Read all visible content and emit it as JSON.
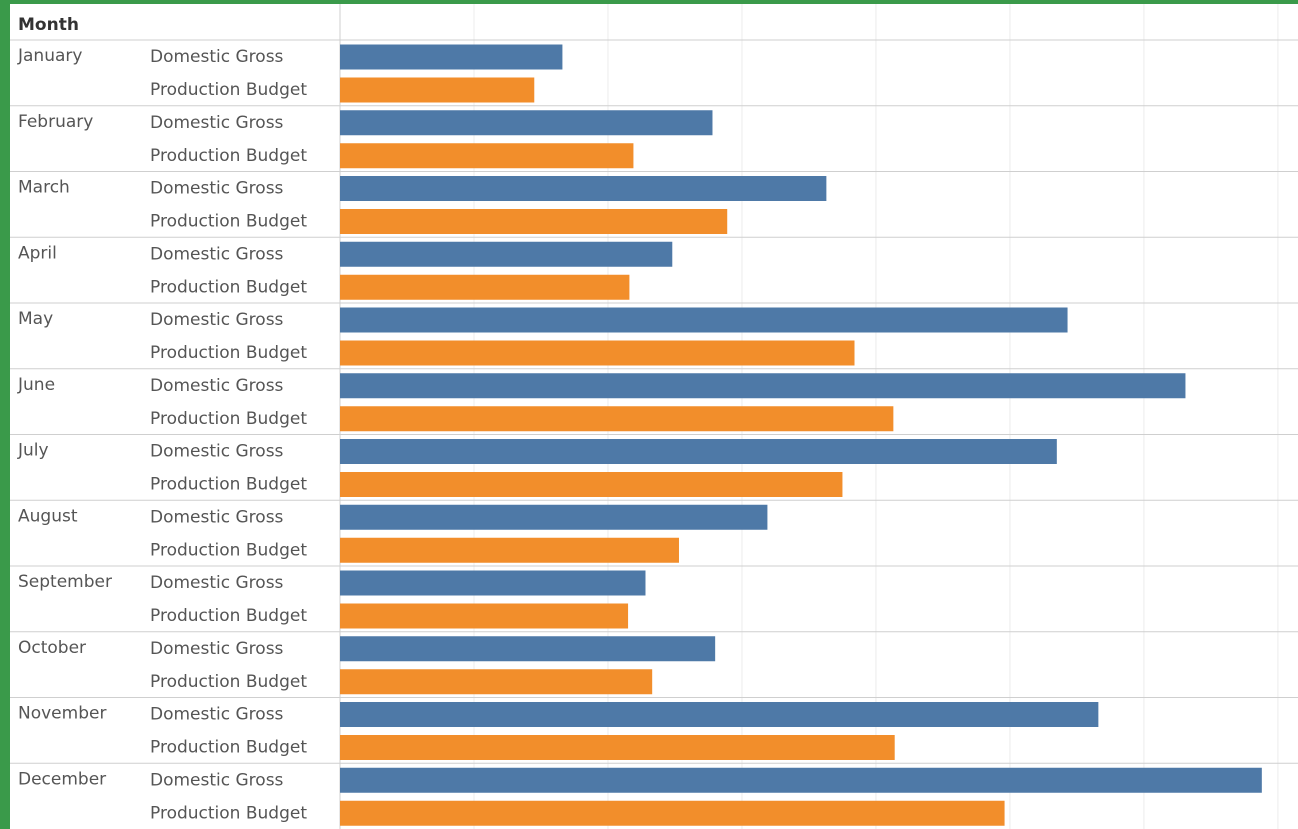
{
  "chart_data": {
    "type": "bar",
    "orientation": "horizontal",
    "header": "Month",
    "categories": [
      "January",
      "February",
      "March",
      "April",
      "May",
      "June",
      "July",
      "August",
      "September",
      "October",
      "November",
      "December"
    ],
    "series": [
      {
        "name": "Domestic Gross",
        "color": "#4e79a7",
        "values": [
          1.66,
          2.78,
          3.63,
          2.48,
          5.43,
          6.31,
          5.35,
          3.19,
          2.28,
          2.8,
          5.66,
          6.88
        ]
      },
      {
        "name": "Production Budget",
        "color": "#f28e2b",
        "values": [
          1.45,
          2.19,
          2.89,
          2.16,
          3.84,
          4.13,
          3.75,
          2.53,
          2.15,
          2.33,
          4.14,
          4.96
        ]
      }
    ],
    "xlim": [
      0,
      7.15
    ],
    "xticks": [
      1,
      2,
      3,
      4,
      5,
      6,
      7
    ],
    "grid": true
  }
}
